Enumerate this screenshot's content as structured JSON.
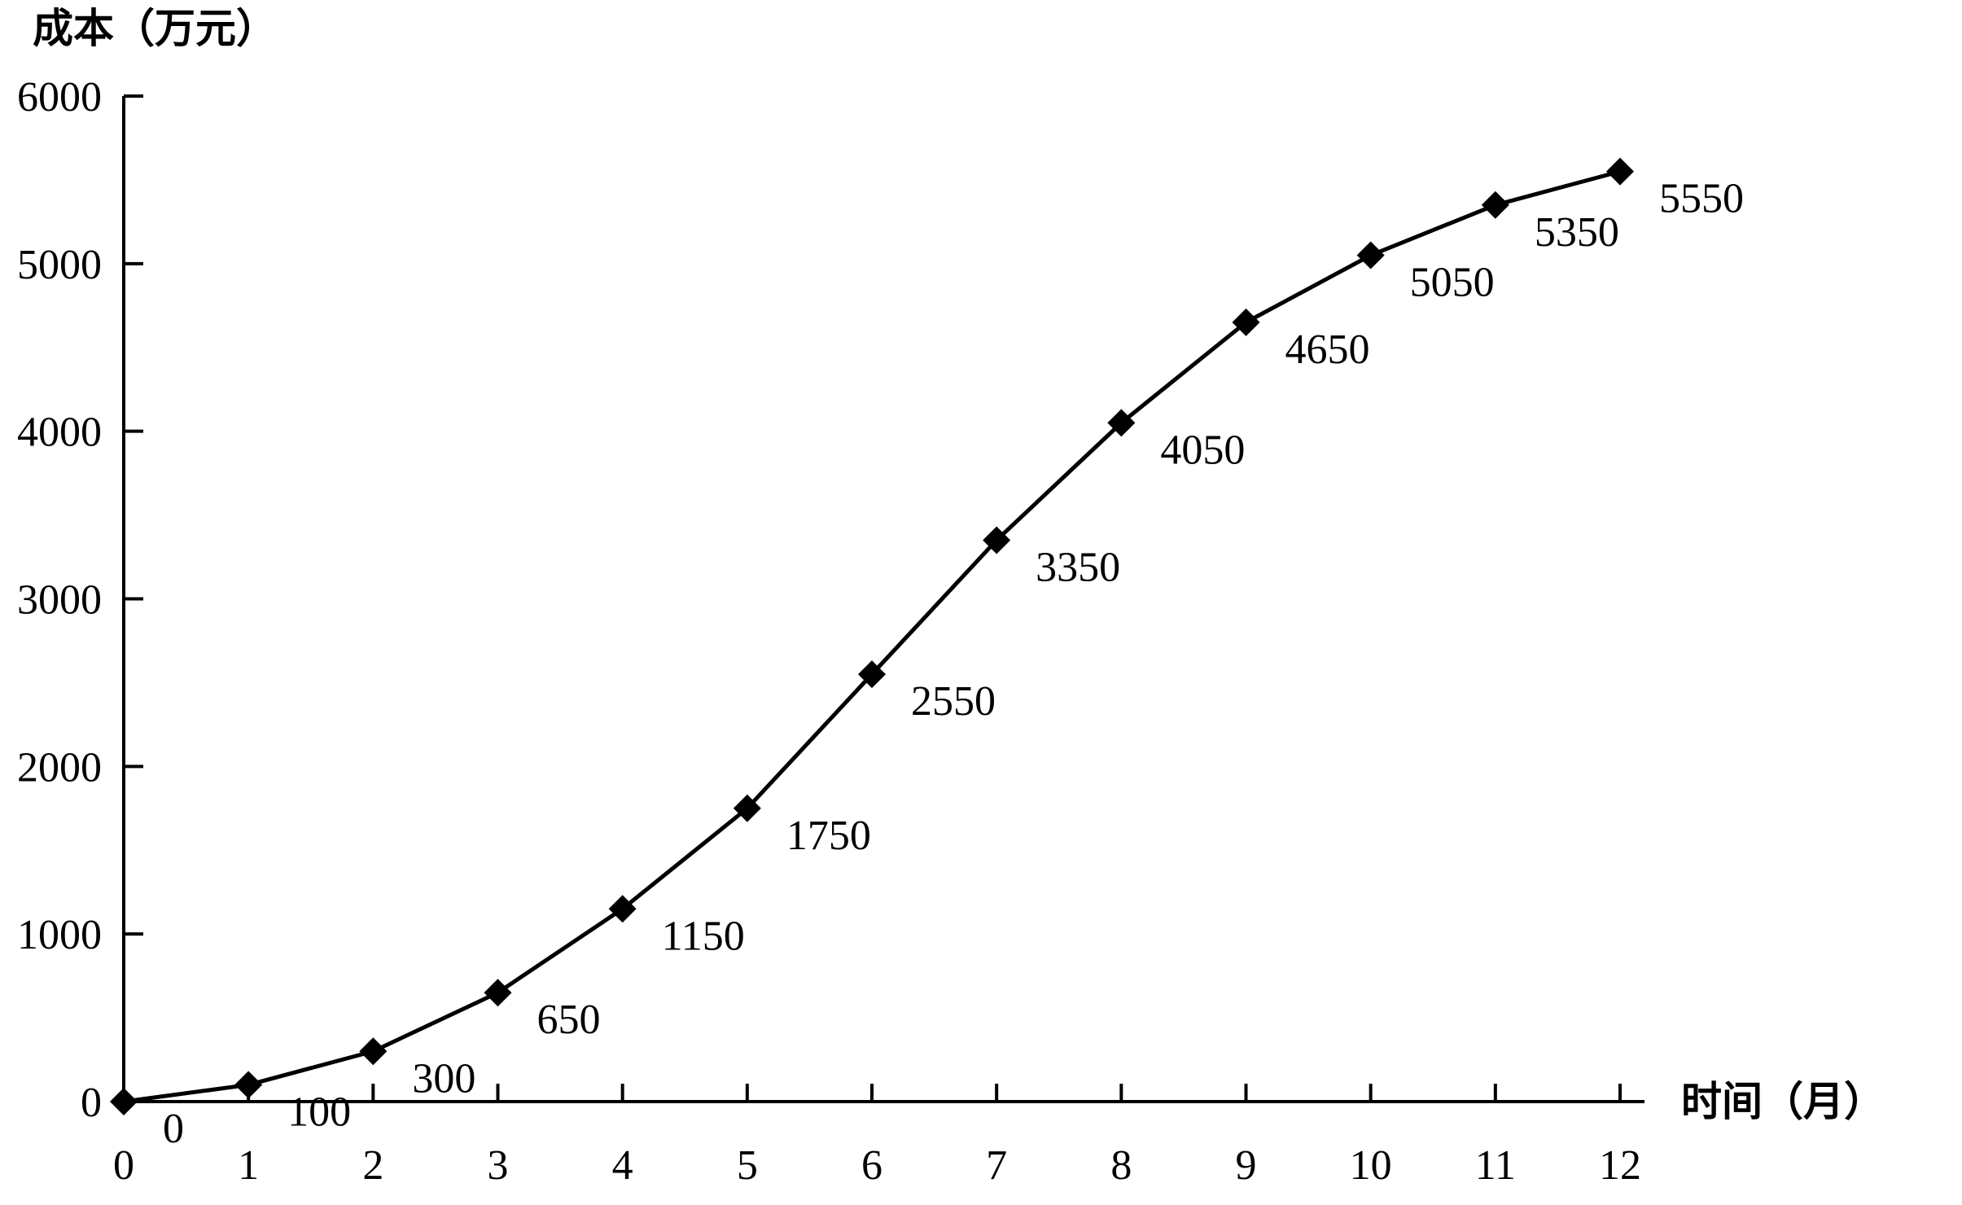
{
  "chart_data": {
    "type": "line",
    "x": [
      0,
      1,
      2,
      3,
      4,
      5,
      6,
      7,
      8,
      9,
      10,
      11,
      12
    ],
    "series": [
      {
        "values": [
          0,
          100,
          300,
          650,
          1150,
          1750,
          2550,
          3350,
          4050,
          4650,
          5050,
          5350,
          5550
        ],
        "data_labels": [
          "0",
          "100",
          "300",
          "650",
          "1150",
          "1750",
          "2550",
          "3350",
          "4050",
          "4650",
          "5050",
          "5350",
          "5550"
        ],
        "marker": "diamond",
        "color": "#000000"
      }
    ],
    "ylabel": "成本（万元）",
    "xlabel": "时间（月）",
    "xlim": [
      0,
      12
    ],
    "ylim": [
      0,
      6000
    ],
    "x_ticks": [
      "0",
      "1",
      "2",
      "3",
      "4",
      "5",
      "6",
      "7",
      "8",
      "9",
      "10",
      "11",
      "12"
    ],
    "y_ticks": [
      "0",
      "1000",
      "2000",
      "3000",
      "4000",
      "5000",
      "6000"
    ],
    "y_tick_values": [
      0,
      1000,
      2000,
      3000,
      4000,
      5000,
      6000
    ],
    "grid": false,
    "legend": "none"
  }
}
